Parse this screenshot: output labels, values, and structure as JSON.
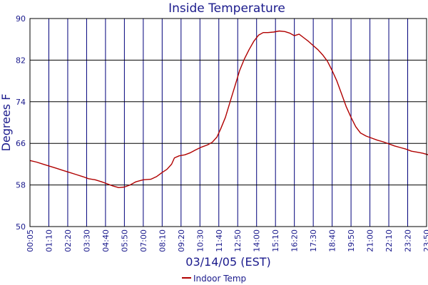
{
  "chart_data": {
    "type": "line",
    "title": "Inside Temperature",
    "xlabel": "03/14/05 (EST)",
    "ylabel": "Degrees F",
    "ylim": [
      50,
      90
    ],
    "yticks": [
      "50",
      "58",
      "66",
      "74",
      "82",
      "90"
    ],
    "xticks": [
      "00:05",
      "01:10",
      "02:20",
      "03:30",
      "04:40",
      "05:50",
      "07:00",
      "08:10",
      "09:20",
      "10:30",
      "11:40",
      "12:50",
      "14:00",
      "15:10",
      "16:20",
      "17:30",
      "18:40",
      "19:50",
      "21:00",
      "22:10",
      "23:20",
      "23:50"
    ],
    "grid": true,
    "legend": "bottom-center",
    "series": [
      {
        "name": "Indoor Temp",
        "color": "#b00000",
        "points": [
          [
            0,
            62.7
          ],
          [
            0.35,
            62.4
          ],
          [
            0.7,
            62.0
          ],
          [
            1.05,
            61.6
          ],
          [
            1.4,
            61.2
          ],
          [
            1.75,
            60.8
          ],
          [
            2.1,
            60.4
          ],
          [
            2.45,
            60.0
          ],
          [
            2.8,
            59.6
          ],
          [
            3.1,
            59.2
          ],
          [
            3.45,
            59.0
          ],
          [
            3.8,
            58.6
          ],
          [
            4.1,
            58.2
          ],
          [
            4.4,
            57.8
          ],
          [
            4.7,
            57.5
          ],
          [
            5.0,
            57.6
          ],
          [
            5.3,
            58.0
          ],
          [
            5.6,
            58.6
          ],
          [
            6.0,
            59.0
          ],
          [
            6.4,
            59.1
          ],
          [
            6.7,
            59.6
          ],
          [
            7.0,
            60.4
          ],
          [
            7.25,
            61.0
          ],
          [
            7.5,
            62.0
          ],
          [
            7.65,
            63.2
          ],
          [
            7.9,
            63.6
          ],
          [
            8.2,
            63.8
          ],
          [
            8.5,
            64.2
          ],
          [
            8.8,
            64.8
          ],
          [
            9.1,
            65.3
          ],
          [
            9.4,
            65.7
          ],
          [
            9.65,
            66.2
          ],
          [
            9.9,
            67.2
          ],
          [
            10.1,
            68.8
          ],
          [
            10.35,
            71.0
          ],
          [
            10.6,
            74.0
          ],
          [
            10.85,
            77.0
          ],
          [
            11.1,
            80.0
          ],
          [
            11.35,
            82.2
          ],
          [
            11.6,
            84.0
          ],
          [
            11.85,
            85.6
          ],
          [
            12.1,
            86.8
          ],
          [
            12.35,
            87.3
          ],
          [
            12.6,
            87.3
          ],
          [
            12.9,
            87.4
          ],
          [
            13.2,
            87.6
          ],
          [
            13.5,
            87.5
          ],
          [
            13.75,
            87.2
          ],
          [
            14.0,
            86.7
          ],
          [
            14.25,
            87.0
          ],
          [
            14.5,
            86.3
          ],
          [
            14.75,
            85.6
          ],
          [
            15.0,
            84.8
          ],
          [
            15.25,
            84.0
          ],
          [
            15.5,
            83.0
          ],
          [
            15.75,
            81.8
          ],
          [
            16.0,
            80.0
          ],
          [
            16.25,
            78.0
          ],
          [
            16.5,
            75.5
          ],
          [
            16.75,
            73.0
          ],
          [
            17.0,
            71.0
          ],
          [
            17.25,
            69.2
          ],
          [
            17.5,
            68.0
          ],
          [
            17.8,
            67.4
          ],
          [
            18.1,
            67.0
          ],
          [
            18.4,
            66.6
          ],
          [
            18.7,
            66.3
          ],
          [
            19.0,
            65.9
          ],
          [
            19.3,
            65.5
          ],
          [
            19.6,
            65.2
          ],
          [
            19.9,
            64.9
          ],
          [
            20.2,
            64.5
          ],
          [
            20.5,
            64.3
          ],
          [
            20.8,
            64.1
          ],
          [
            21.1,
            63.8
          ],
          [
            21.4,
            63.6
          ],
          [
            21.7,
            63.2
          ],
          [
            21.95,
            62.6
          ],
          [
            22.2,
            61.7
          ]
        ]
      }
    ]
  }
}
